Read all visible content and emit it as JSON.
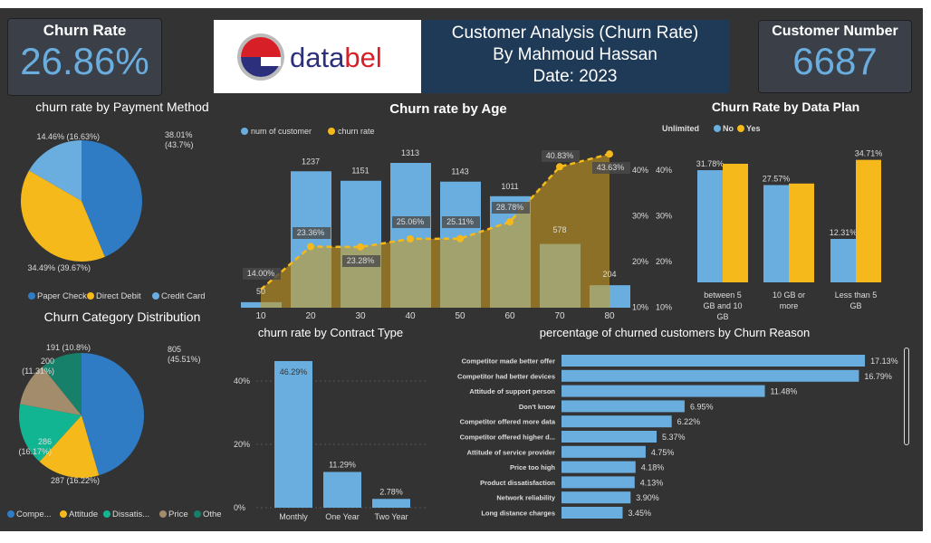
{
  "kpi": {
    "churn_label": "Churn Rate",
    "churn_value": "26.86%",
    "customers_label": "Customer Number",
    "customers_value": "6687"
  },
  "logo": {
    "text_a": "data",
    "text_b": "bel"
  },
  "header": {
    "line1": "Customer Analysis (Churn Rate)",
    "line2": "By Mahmoud Hassan",
    "line3": "Date: 2023"
  },
  "colors": {
    "bg": "#333333",
    "blue": "#2f7bc4",
    "light_blue": "#6aaee0",
    "yellow": "#f5b91b",
    "teal": "#12b592",
    "tan": "#a38c6c",
    "dark_teal": "#16806a"
  },
  "chart_data": [
    {
      "id": "payment",
      "type": "pie",
      "title": "churn rate by Payment Method",
      "categories": [
        "Paper Check",
        "Direct Debit",
        "Credit Card"
      ],
      "shares": [
        43.7,
        39.67,
        16.63
      ],
      "labels": [
        "38.01% (43.7%)",
        "34.49% (39.67%)",
        "14.46% (16.63%)"
      ],
      "legend": "bottom"
    },
    {
      "id": "age",
      "type": "bar+line",
      "title": "Churn rate by Age",
      "categories": [
        "10",
        "20",
        "30",
        "40",
        "50",
        "60",
        "70",
        "80"
      ],
      "series": [
        {
          "name": "num of customer",
          "values": [
            50,
            1237,
            1151,
            1313,
            1143,
            1011,
            578,
            204
          ]
        },
        {
          "name": "churn rate",
          "values": [
            14.0,
            23.36,
            23.28,
            25.06,
            25.11,
            28.78,
            40.83,
            43.63
          ]
        }
      ],
      "y2_ticks": [
        "40%",
        "30%",
        "20%",
        "10%"
      ],
      "legend": "top-left"
    },
    {
      "id": "dataplan",
      "type": "bar",
      "title": "Churn Rate by Data Plan",
      "legend_title": "Unlimited",
      "categories": [
        "between 5 GB and 10 GB",
        "10 GB or more",
        "Less than 5 GB"
      ],
      "series": [
        {
          "name": "No",
          "values": [
            31.78,
            27.57,
            12.31
          ],
          "labels": [
            "31.78%",
            "27.57%",
            "12.31%"
          ]
        },
        {
          "name": "Yes",
          "values": [
            33.6,
            28.0,
            34.71
          ],
          "labels": [
            "",
            "",
            "34.71%"
          ]
        }
      ],
      "y_ticks": [
        "40%",
        "30%",
        "20%",
        "10%"
      ],
      "legend": "top-left"
    },
    {
      "id": "category",
      "type": "pie",
      "title": "Churn Category Distribution",
      "categories": [
        "Compe...",
        "Attitude",
        "Dissatis...",
        "Price",
        "Othe"
      ],
      "values": [
        805,
        287,
        286,
        200,
        191
      ],
      "labels": [
        "805 (45.51%)",
        "287 (16.22%)",
        "286 (16.17%)",
        "200 (11.31%)",
        "191 (10.8%)"
      ],
      "legend": "bottom"
    },
    {
      "id": "contract",
      "type": "bar",
      "title": "churn rate by Contract Type",
      "categories": [
        "Monthly",
        "One Year",
        "Two Year"
      ],
      "values": [
        46.29,
        11.29,
        2.78
      ],
      "labels": [
        "46.29%",
        "11.29%",
        "2.78%"
      ],
      "y_ticks": [
        "40%",
        "20%",
        "0%"
      ],
      "ylim": [
        0,
        50
      ]
    },
    {
      "id": "reason",
      "type": "hbar",
      "title": "percentage of churned customers by Churn Reason",
      "categories": [
        "Competitor made better offer",
        "Competitor had better devices",
        "Attitude of support person",
        "Don't know",
        "Competitor offered more data",
        "Competitor offered higher d...",
        "Attitude of service provider",
        "Price too high",
        "Product dissatisfaction",
        "Network reliability",
        "Long distance charges"
      ],
      "values": [
        17.13,
        16.79,
        11.48,
        6.95,
        6.22,
        5.37,
        4.75,
        4.18,
        4.13,
        3.9,
        3.45
      ]
    }
  ]
}
